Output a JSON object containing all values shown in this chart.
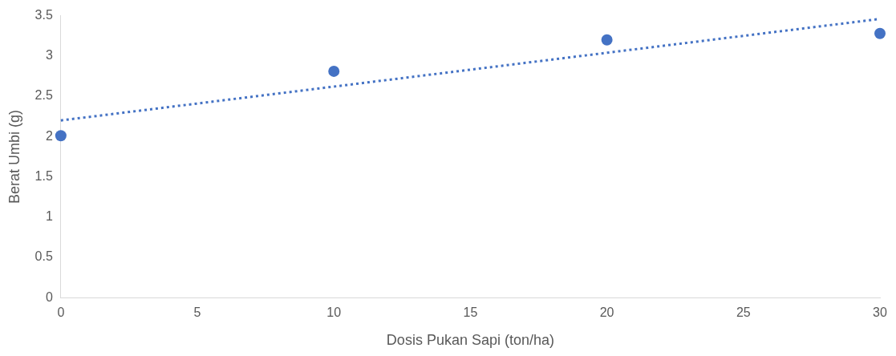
{
  "chart_data": {
    "type": "scatter",
    "xlabel": "Dosis Pukan Sapi (ton/ha)",
    "ylabel": "Berat Umbi (g)",
    "x": [
      0,
      10,
      20,
      30
    ],
    "series": [
      {
        "color": "#4472c4",
        "values": [
          2.01,
          2.81,
          3.2,
          3.28
        ],
        "marker": "circle"
      },
      {
        "type": "line",
        "color": "#4472c4",
        "x": [
          0,
          30
        ],
        "values": [
          2.2,
          3.46
        ],
        "line_style": "dotted",
        "marker": "none"
      }
    ],
    "xlim": [
      0,
      30
    ],
    "xticks": [
      0,
      5,
      10,
      15,
      20,
      25,
      30
    ],
    "ylim": [
      0,
      3.5
    ],
    "yticks": [
      0,
      0.5,
      1,
      1.5,
      2,
      2.5,
      3,
      3.5
    ],
    "grid": false,
    "legend": false
  }
}
